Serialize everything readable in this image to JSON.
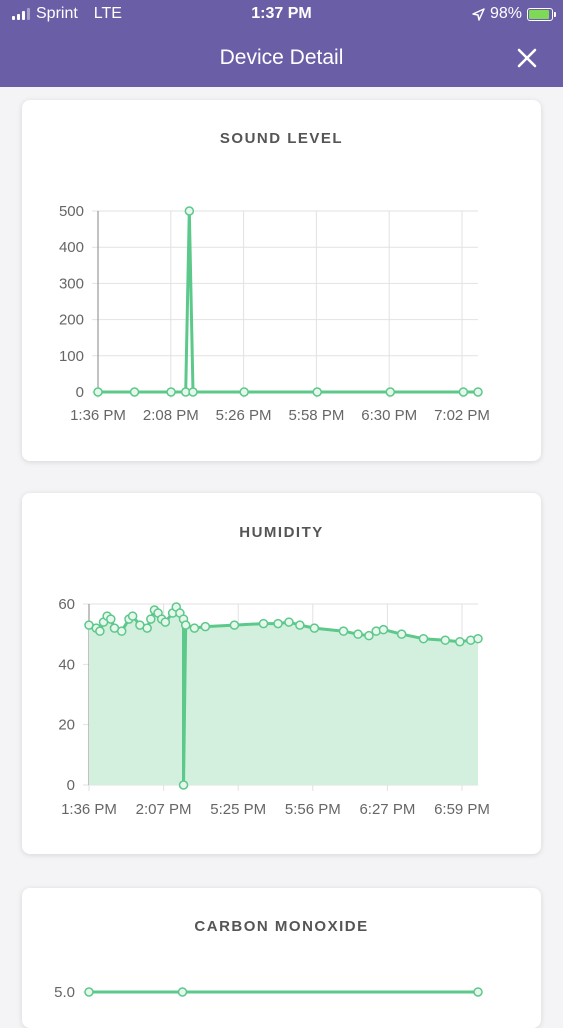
{
  "status_bar": {
    "carrier": "Sprint",
    "network": "LTE",
    "time": "1:37 PM",
    "battery": "98%",
    "battery_level": 0.98
  },
  "header": {
    "title": "Device Detail",
    "close_icon": "close-icon"
  },
  "colors": {
    "header_bg": "#6a5fa7",
    "series_line": "#5cc88a",
    "series_fill": "#d3f0df",
    "grid": "#e2e2e2"
  },
  "cards": [
    {
      "title": "SOUND LEVEL"
    },
    {
      "title": "HUMIDITY"
    },
    {
      "title": "CARBON MONOXIDE"
    }
  ],
  "chart_data": [
    {
      "type": "line",
      "title": "SOUND LEVEL",
      "x_ticks": [
        "1:36 PM",
        "2:08 PM",
        "5:26 PM",
        "5:58 PM",
        "6:30 PM",
        "7:02 PM"
      ],
      "y_ticks": [
        0,
        100,
        200,
        300,
        400,
        500
      ],
      "ylim": [
        0,
        500
      ],
      "xlim": [
        0,
        5.2
      ],
      "grid": true,
      "fill": false,
      "series": [
        {
          "values": [
            [
              0,
              0
            ],
            [
              0.5,
              0
            ],
            [
              1,
              0
            ],
            [
              1.2,
              0
            ],
            [
              1.25,
              500
            ],
            [
              1.3,
              0
            ],
            [
              2,
              0
            ],
            [
              3,
              0
            ],
            [
              4,
              0
            ],
            [
              5,
              0
            ],
            [
              5.2,
              0
            ]
          ]
        }
      ]
    },
    {
      "type": "area",
      "title": "HUMIDITY",
      "x_ticks": [
        "1:36 PM",
        "2:07 PM",
        "5:25 PM",
        "5:56 PM",
        "6:27 PM",
        "6:59 PM"
      ],
      "y_ticks": [
        0,
        20,
        40,
        60
      ],
      "ylim": [
        0,
        60
      ],
      "xlim": [
        0,
        5.35
      ],
      "grid": true,
      "fill": true,
      "series": [
        {
          "values": [
            [
              0,
              53
            ],
            [
              0.1,
              52
            ],
            [
              0.15,
              51
            ],
            [
              0.2,
              54
            ],
            [
              0.25,
              56
            ],
            [
              0.3,
              55
            ],
            [
              0.35,
              52
            ],
            [
              0.45,
              51
            ],
            [
              0.55,
              55
            ],
            [
              0.6,
              56
            ],
            [
              0.7,
              53
            ],
            [
              0.8,
              52
            ],
            [
              0.85,
              55
            ],
            [
              0.9,
              58
            ],
            [
              0.95,
              57
            ],
            [
              1.0,
              55
            ],
            [
              1.05,
              54
            ],
            [
              1.15,
              57
            ],
            [
              1.2,
              59
            ],
            [
              1.25,
              57
            ],
            [
              1.3,
              55
            ],
            [
              1.3,
              0
            ],
            [
              1.33,
              53
            ],
            [
              1.45,
              52
            ],
            [
              1.6,
              52.5
            ],
            [
              2.0,
              53
            ],
            [
              2.4,
              53.5
            ],
            [
              2.6,
              53.5
            ],
            [
              2.75,
              54
            ],
            [
              2.9,
              53
            ],
            [
              3.1,
              52
            ],
            [
              3.5,
              51
            ],
            [
              3.7,
              50
            ],
            [
              3.85,
              49.5
            ],
            [
              3.95,
              51
            ],
            [
              4.05,
              51.5
            ],
            [
              4.3,
              50
            ],
            [
              4.6,
              48.5
            ],
            [
              4.9,
              48
            ],
            [
              5.1,
              47.5
            ],
            [
              5.25,
              48
            ],
            [
              5.35,
              48.5
            ]
          ]
        }
      ]
    },
    {
      "type": "line",
      "title": "CARBON MONOXIDE",
      "y_ticks": [
        "5.0"
      ],
      "ylim": [
        0,
        5
      ],
      "grid": true,
      "fill": false,
      "series": [
        {
          "values": [
            [
              0,
              5
            ],
            [
              1.25,
              5
            ],
            [
              5.2,
              5
            ]
          ]
        }
      ]
    }
  ]
}
